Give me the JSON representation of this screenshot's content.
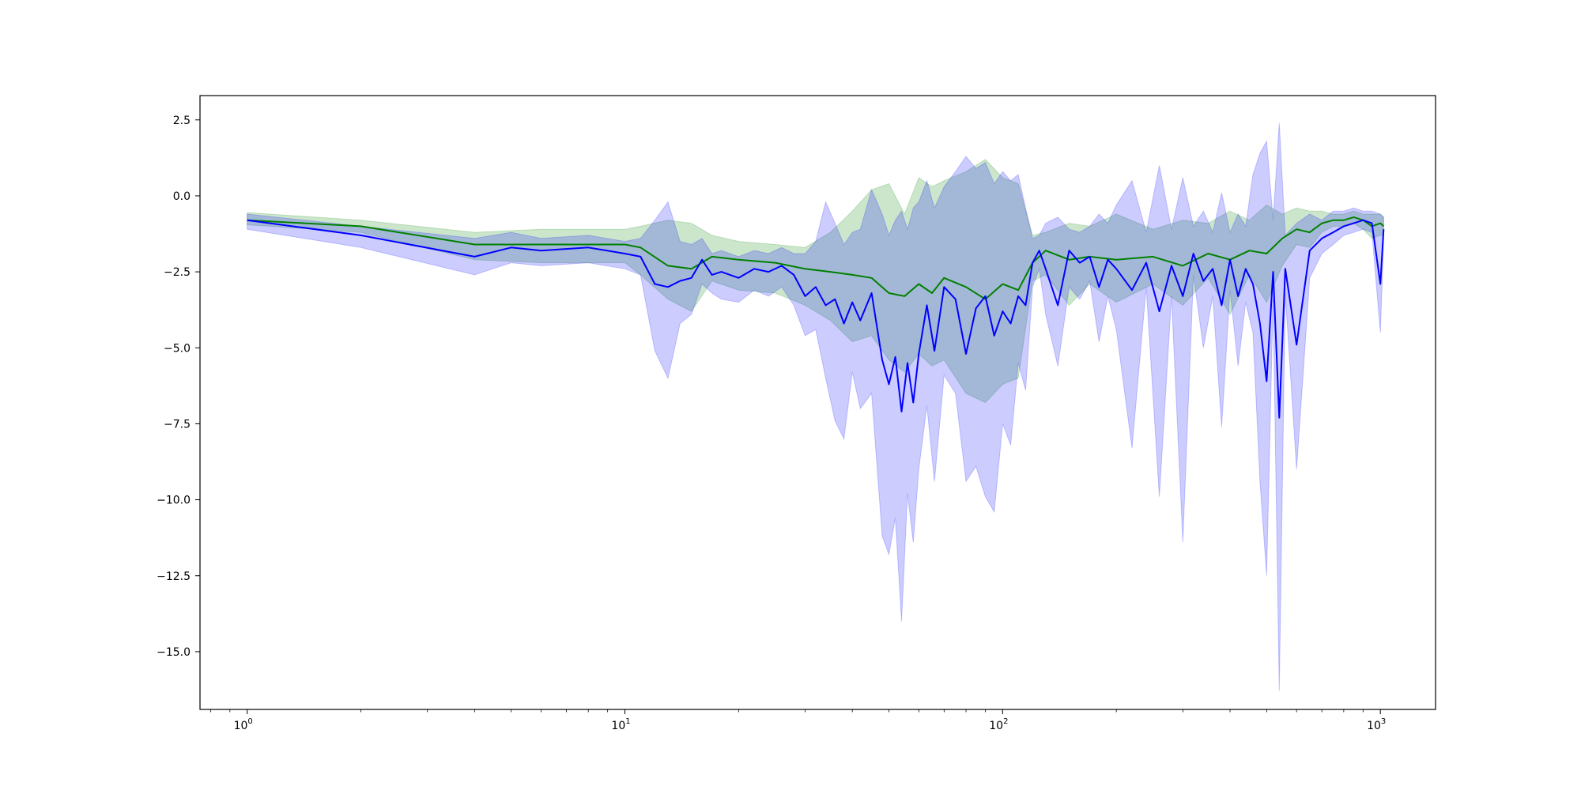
{
  "chart_data": {
    "type": "line",
    "title": "",
    "xlabel": "",
    "ylabel": "",
    "xscale": "log",
    "xlim": [
      0.75,
      1400
    ],
    "ylim": [
      -16.9,
      3.3
    ],
    "grid": false,
    "x_ticks": [
      {
        "value": 1,
        "base": "10",
        "exp": "0"
      },
      {
        "value": 10,
        "base": "10",
        "exp": "1"
      },
      {
        "value": 100,
        "base": "10",
        "exp": "2"
      },
      {
        "value": 1000,
        "base": "10",
        "exp": "3"
      }
    ],
    "y_ticks": [
      {
        "value": 2.5,
        "label": "2.5"
      },
      {
        "value": 0,
        "label": "0.0"
      },
      {
        "value": -2.5,
        "label": "−2.5"
      },
      {
        "value": -5,
        "label": "−5.0"
      },
      {
        "value": -7.5,
        "label": "−7.5"
      },
      {
        "value": -10,
        "label": "−10.0"
      },
      {
        "value": -12.5,
        "label": "−12.5"
      },
      {
        "value": -15,
        "label": "−15.0"
      }
    ],
    "series": [
      {
        "color": "#008000",
        "band_color": "#008000",
        "band_opacity": 0.2,
        "x": [
          1,
          2,
          4,
          6,
          10,
          11,
          13,
          15,
          17,
          20,
          25,
          30,
          35,
          40,
          45,
          50,
          55,
          60,
          65,
          70,
          80,
          90,
          100,
          110,
          120,
          130,
          150,
          170,
          200,
          250,
          300,
          350,
          400,
          450,
          500,
          550,
          600,
          650,
          700,
          750,
          800,
          850,
          900,
          950,
          1000,
          1020
        ],
        "y": [
          -0.8,
          -1.0,
          -1.6,
          -1.6,
          -1.6,
          -1.7,
          -2.3,
          -2.4,
          -2.0,
          -2.1,
          -2.2,
          -2.4,
          -2.5,
          -2.6,
          -2.7,
          -3.2,
          -3.3,
          -2.9,
          -3.2,
          -2.7,
          -3.0,
          -3.4,
          -2.9,
          -3.1,
          -2.2,
          -1.8,
          -2.1,
          -2.0,
          -2.1,
          -2.0,
          -2.3,
          -1.9,
          -2.1,
          -1.8,
          -1.9,
          -1.4,
          -1.1,
          -1.2,
          -0.9,
          -0.8,
          -0.8,
          -0.7,
          -0.8,
          -1.0,
          -0.9,
          -1.0
        ],
        "lower": [
          -0.95,
          -1.2,
          -2.1,
          -2.2,
          -2.2,
          -2.6,
          -3.4,
          -3.8,
          -2.8,
          -3.1,
          -3.2,
          -3.6,
          -4.1,
          -4.8,
          -4.6,
          -5.4,
          -5.8,
          -5.2,
          -5.6,
          -5.4,
          -6.5,
          -6.8,
          -6.2,
          -6.0,
          -2.8,
          -2.6,
          -3.6,
          -2.9,
          -3.5,
          -2.9,
          -3.6,
          -2.7,
          -3.9,
          -2.6,
          -3.5,
          -2.3,
          -1.6,
          -1.7,
          -1.2,
          -1.0,
          -1.0,
          -0.9,
          -1.1,
          -1.4,
          -1.3,
          -1.3
        ],
        "upper": [
          -0.55,
          -0.8,
          -1.2,
          -1.1,
          -1.1,
          -1.0,
          -0.8,
          -0.9,
          -1.3,
          -1.5,
          -1.6,
          -1.7,
          -1.2,
          -0.5,
          0.2,
          0.4,
          -0.6,
          0.6,
          0.3,
          0.5,
          0.8,
          1.2,
          0.6,
          0.4,
          -1.3,
          -1.2,
          -0.9,
          -1.0,
          -0.6,
          -1.1,
          -0.8,
          -0.9,
          -0.5,
          -0.8,
          -0.3,
          -0.6,
          -0.4,
          -0.5,
          -0.5,
          -0.6,
          -0.6,
          -0.5,
          -0.6,
          -0.6,
          -0.6,
          -0.7
        ]
      },
      {
        "color": "#0000ff",
        "band_color": "#0000ff",
        "band_opacity": 0.2,
        "x": [
          1,
          2,
          4,
          5,
          6,
          8,
          10,
          11,
          12,
          13,
          14,
          15,
          16,
          17,
          18,
          20,
          22,
          24,
          26,
          28,
          30,
          32,
          34,
          36,
          38,
          40,
          42,
          45,
          48,
          50,
          52,
          54,
          56,
          58,
          60,
          63,
          66,
          70,
          75,
          80,
          85,
          90,
          95,
          100,
          105,
          110,
          115,
          120,
          125,
          130,
          140,
          150,
          160,
          170,
          180,
          190,
          200,
          220,
          240,
          260,
          280,
          300,
          320,
          340,
          360,
          380,
          400,
          420,
          440,
          460,
          480,
          500,
          520,
          540,
          560,
          600,
          650,
          700,
          750,
          800,
          850,
          900,
          950,
          1000,
          1020
        ],
        "y": [
          -0.8,
          -1.3,
          -2.0,
          -1.7,
          -1.8,
          -1.7,
          -1.9,
          -2.0,
          -2.9,
          -3.0,
          -2.8,
          -2.7,
          -2.1,
          -2.6,
          -2.5,
          -2.7,
          -2.4,
          -2.5,
          -2.3,
          -2.6,
          -3.3,
          -3.0,
          -3.6,
          -3.4,
          -4.2,
          -3.5,
          -4.1,
          -3.2,
          -5.4,
          -6.2,
          -5.3,
          -7.1,
          -5.5,
          -6.8,
          -5.2,
          -3.6,
          -5.1,
          -3.0,
          -3.4,
          -5.2,
          -3.7,
          -3.3,
          -4.6,
          -3.8,
          -4.2,
          -3.3,
          -3.6,
          -2.2,
          -1.8,
          -2.4,
          -3.6,
          -1.8,
          -2.2,
          -2.0,
          -3.0,
          -2.1,
          -2.4,
          -3.1,
          -2.2,
          -3.8,
          -2.3,
          -3.3,
          -1.9,
          -2.8,
          -2.4,
          -3.6,
          -2.1,
          -3.3,
          -2.4,
          -2.9,
          -4.2,
          -6.1,
          -2.5,
          -7.3,
          -2.4,
          -4.9,
          -1.8,
          -1.4,
          -1.2,
          -1.0,
          -0.9,
          -0.8,
          -0.9,
          -2.9,
          -1.1
        ],
        "lower": [
          -1.1,
          -1.7,
          -2.6,
          -2.2,
          -2.3,
          -2.2,
          -2.4,
          -2.6,
          -5.1,
          -6.0,
          -4.2,
          -3.9,
          -2.9,
          -3.2,
          -3.4,
          -3.5,
          -3.1,
          -3.3,
          -3.0,
          -3.6,
          -4.6,
          -4.4,
          -6.0,
          -7.4,
          -8.0,
          -5.8,
          -7.0,
          -6.5,
          -11.2,
          -11.8,
          -10.6,
          -14.0,
          -9.8,
          -11.4,
          -9.0,
          -6.9,
          -9.4,
          -5.9,
          -6.5,
          -9.4,
          -8.9,
          -9.9,
          -10.4,
          -7.5,
          -8.2,
          -5.5,
          -6.4,
          -3.0,
          -2.4,
          -3.9,
          -5.6,
          -3.0,
          -3.4,
          -2.8,
          -4.8,
          -3.3,
          -4.4,
          -8.3,
          -3.0,
          -9.9,
          -3.3,
          -11.4,
          -2.6,
          -5.0,
          -3.3,
          -7.6,
          -3.1,
          -5.6,
          -3.5,
          -4.5,
          -9.4,
          -12.5,
          -3.4,
          -16.3,
          -3.2,
          -9.0,
          -2.7,
          -1.9,
          -1.6,
          -1.3,
          -1.2,
          -1.1,
          -1.2,
          -4.5,
          -1.5
        ],
        "upper": [
          -0.6,
          -1.0,
          -1.4,
          -1.2,
          -1.4,
          -1.3,
          -1.5,
          -1.4,
          -0.8,
          -0.2,
          -1.5,
          -1.6,
          -1.4,
          -1.9,
          -1.8,
          -2.0,
          -1.8,
          -1.9,
          -1.7,
          -1.9,
          -1.9,
          -1.5,
          -0.2,
          -0.9,
          -1.6,
          -1.2,
          -1.1,
          0.2,
          -0.6,
          -1.3,
          -0.8,
          -0.5,
          -1.1,
          -0.4,
          -0.2,
          0.5,
          -0.4,
          0.3,
          0.8,
          1.3,
          0.9,
          1.1,
          0.4,
          0.8,
          0.5,
          0.7,
          -0.4,
          -1.4,
          -1.3,
          -0.9,
          -0.7,
          -1.1,
          -1.2,
          -1.0,
          -0.6,
          -0.9,
          -0.3,
          0.5,
          -1.2,
          1.0,
          -1.1,
          0.6,
          -1.0,
          -0.5,
          -1.2,
          0.1,
          -1.2,
          -0.6,
          -1.0,
          0.7,
          1.4,
          1.8,
          -0.8,
          2.4,
          -1.3,
          -0.9,
          -0.6,
          -0.8,
          -0.5,
          -0.5,
          -0.4,
          -0.5,
          -0.5,
          -0.6,
          -0.7
        ]
      }
    ]
  }
}
